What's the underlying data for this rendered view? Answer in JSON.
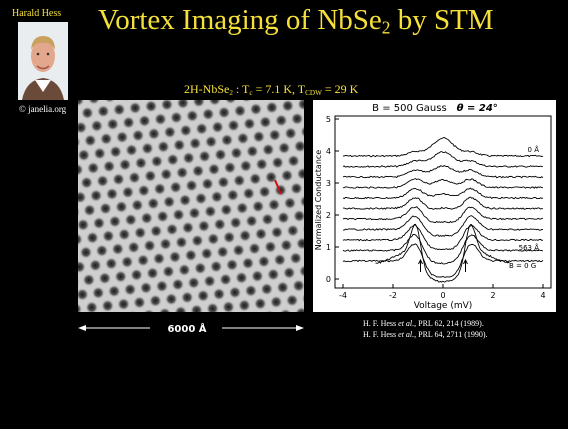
{
  "photo": {
    "caption": "Harald Hess",
    "credit": "© janelia.org"
  },
  "title": {
    "main": "Vortex Imaging of NbSe",
    "sub": "2",
    "end": " by STM"
  },
  "subtitle": {
    "a": "2H-NbSe",
    "a_sub": "2",
    "b": " : T",
    "b_sub": "c",
    "c": " = 7.1 K, T",
    "c_sub": "CDW",
    "d": " = 29 K"
  },
  "scale_bar": "6000 Å",
  "figure": {
    "header": "B = 500 Gauss",
    "angle": "θ = 24°",
    "y_label": "Normalized Conductance",
    "x_label": "Voltage (mV)",
    "y_ticks": [
      "5",
      "4",
      "3",
      "2",
      "1",
      "0"
    ],
    "x_ticks": [
      "-4",
      "-2",
      "0",
      "2",
      "4"
    ],
    "labels": [
      "0 Å",
      "563 Å",
      "B = 0 G"
    ]
  },
  "references": [
    {
      "author": "H. F. Hess ",
      "etal": "et al.",
      "cite": ", PRL 62, 214 (1989)."
    },
    {
      "author": "H. F. Hess ",
      "etal": "et al.",
      "cite": ", PRL 64, 2711 (1990)."
    }
  ]
}
